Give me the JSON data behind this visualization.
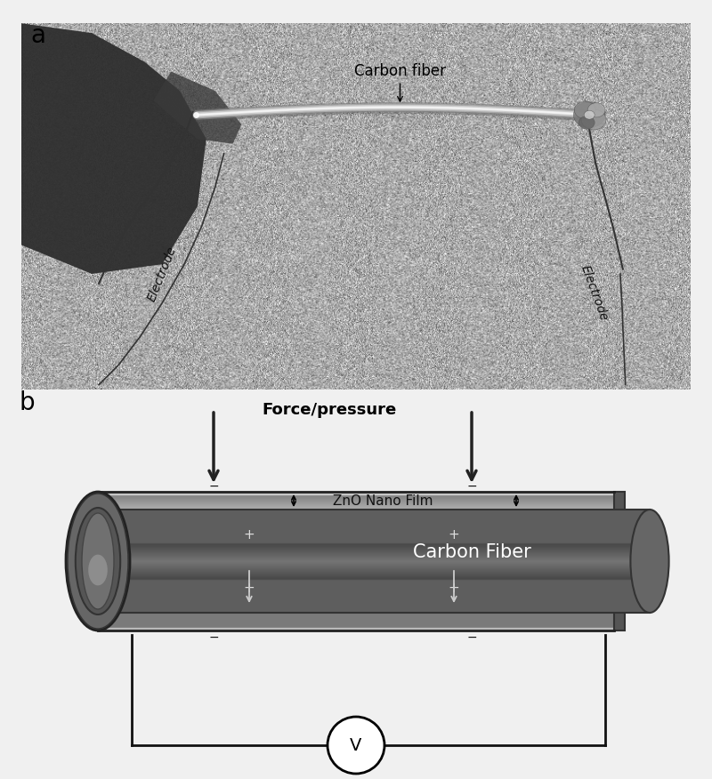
{
  "fig_width": 8.0,
  "fig_height": 8.76,
  "bg_color": "#f0f0f0",
  "panel_a_label": "a",
  "panel_b_label": "b",
  "label_fontsize": 20,
  "carbon_fiber_label": "Carbon fiber",
  "electrode_label": "Electrode",
  "force_label": "Force/pressure",
  "zno_label": "ZnO Nano Film",
  "cf_label": "Carbon Fiber",
  "volt_label": "V",
  "photo_gray": 170,
  "photo_noise_range": 30,
  "dark_blob_color": "#3a3a3a",
  "fiber_highlight": "#e8e8e8",
  "electrode_wire_color": "#222222",
  "clamp_color": "#888888",
  "outer_shell_dark": "#555555",
  "outer_shell_light": "#aaaaaa",
  "outer_shell_top_strip": "#c0c0c0",
  "inner_core_dark": "#444444",
  "inner_core_mid": "#666666",
  "inner_core_light": "#888888",
  "endcap_dark": "#333333",
  "endcap_mid": "#666666",
  "endcap_light": "#999999",
  "circuit_line_color": "#111111",
  "white": "#ffffff",
  "black": "#000000"
}
